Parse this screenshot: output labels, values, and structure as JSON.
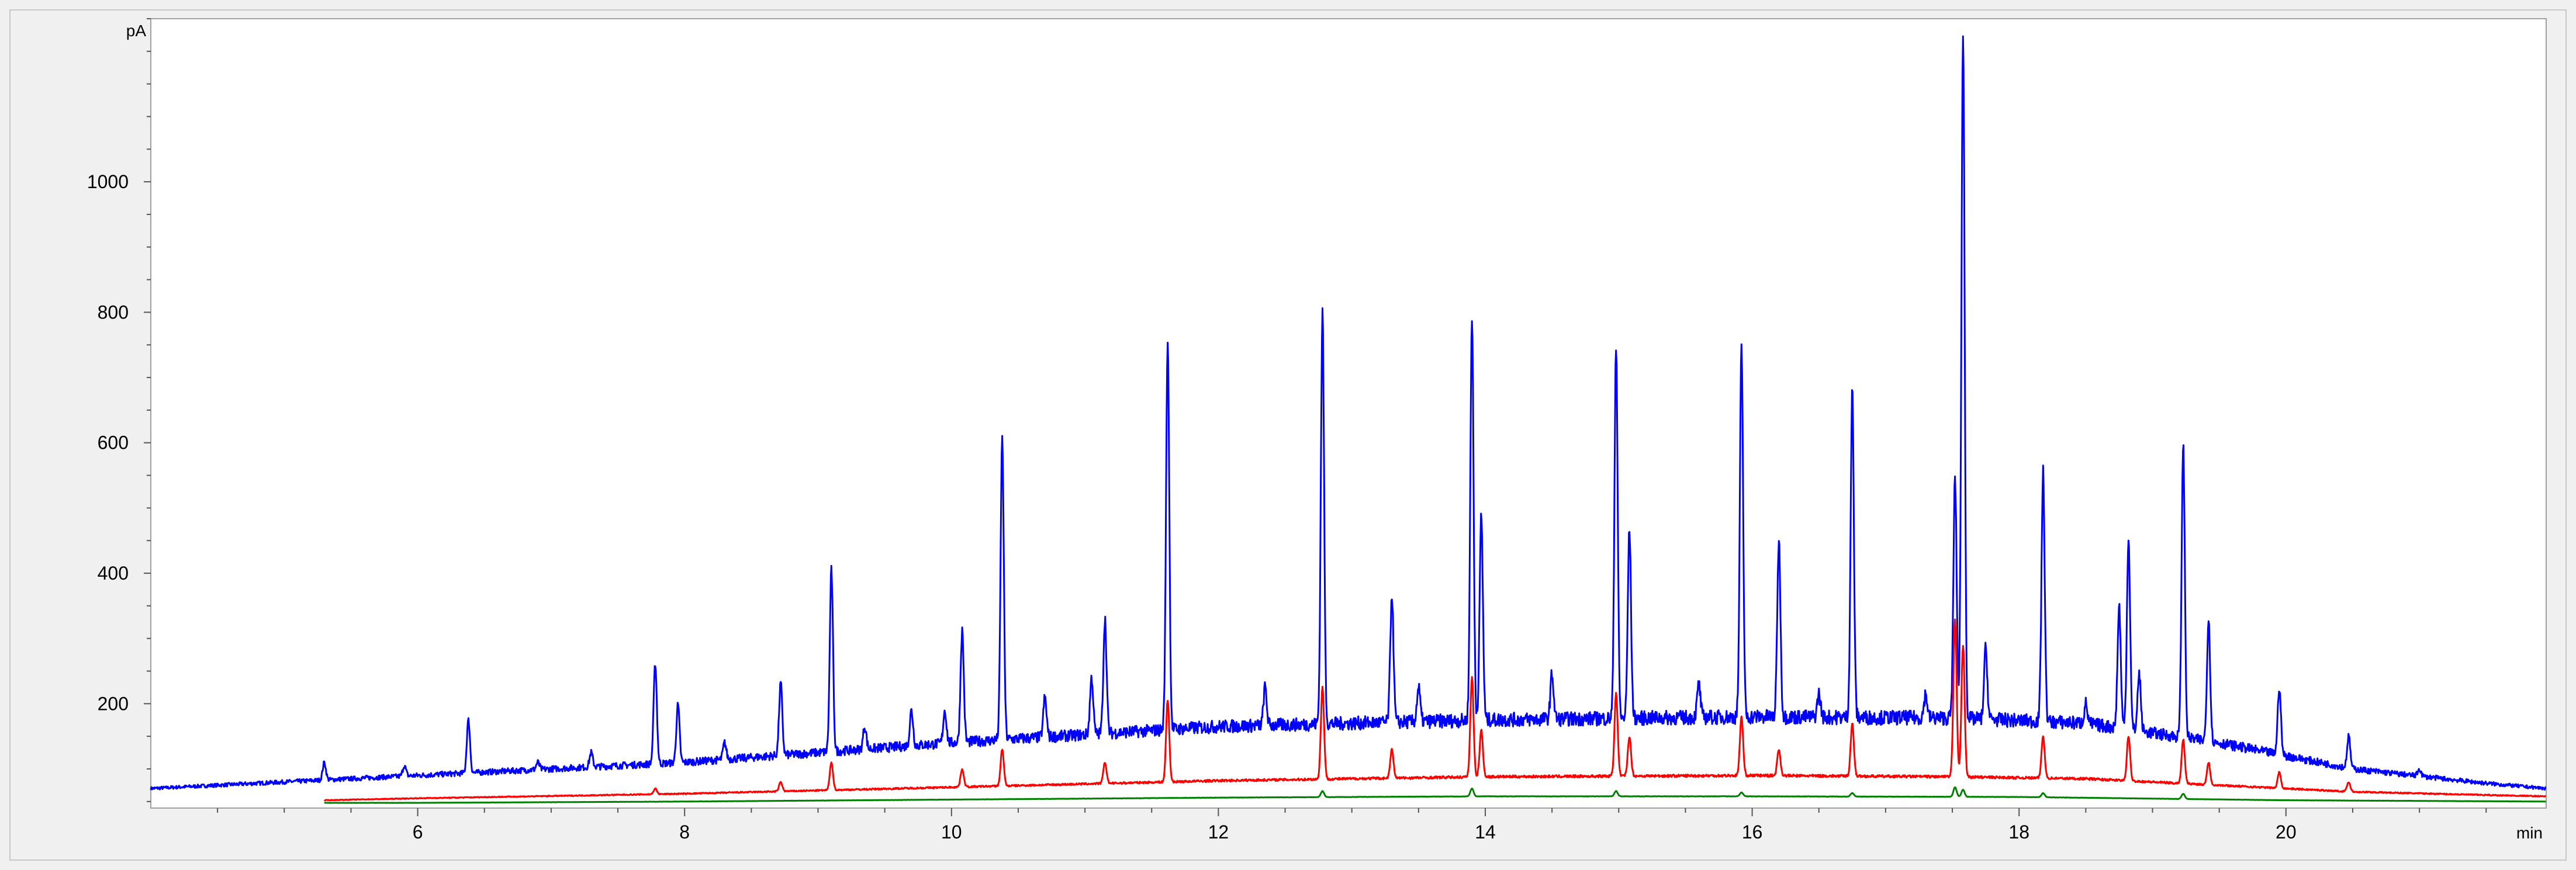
{
  "chart_data": {
    "type": "line",
    "title": "",
    "xlabel": "",
    "ylabel": "",
    "x_unit": "min",
    "y_unit": "pA",
    "xlim": [
      4.0,
      21.95
    ],
    "ylim": [
      40,
      1250
    ],
    "x_ticks": [
      6,
      8,
      10,
      12,
      14,
      16,
      18,
      20
    ],
    "y_ticks": [
      200,
      400,
      600,
      800,
      1000
    ],
    "grid": false,
    "legend": "none",
    "plot_background": "#ffffff",
    "series": [
      {
        "color": "#0000ff",
        "baseline": [
          [
            4.0,
            70
          ],
          [
            6.0,
            90
          ],
          [
            8.0,
            110
          ],
          [
            10.0,
            140
          ],
          [
            12.0,
            165
          ],
          [
            14.0,
            175
          ],
          [
            16.0,
            180
          ],
          [
            17.5,
            178
          ],
          [
            18.5,
            170
          ],
          [
            19.5,
            140
          ],
          [
            20.5,
            100
          ],
          [
            21.5,
            78
          ],
          [
            21.95,
            70
          ]
        ],
        "peaks": [
          [
            5.3,
            110
          ],
          [
            5.9,
            105
          ],
          [
            6.38,
            175
          ],
          [
            6.9,
            110
          ],
          [
            7.3,
            125
          ],
          [
            7.78,
            262
          ],
          [
            7.95,
            198
          ],
          [
            8.3,
            140
          ],
          [
            8.72,
            232
          ],
          [
            9.1,
            405
          ],
          [
            9.35,
            165
          ],
          [
            9.7,
            190
          ],
          [
            9.95,
            190
          ],
          [
            10.08,
            312
          ],
          [
            10.38,
            605
          ],
          [
            10.7,
            210
          ],
          [
            11.05,
            240
          ],
          [
            11.15,
            330
          ],
          [
            11.62,
            755
          ],
          [
            12.35,
            225
          ],
          [
            12.78,
            800
          ],
          [
            13.3,
            368
          ],
          [
            13.5,
            225
          ],
          [
            13.9,
            795
          ],
          [
            13.97,
            490
          ],
          [
            14.5,
            245
          ],
          [
            14.98,
            750
          ],
          [
            15.08,
            468
          ],
          [
            15.6,
            230
          ],
          [
            15.92,
            745
          ],
          [
            16.2,
            450
          ],
          [
            16.5,
            215
          ],
          [
            16.75,
            680
          ],
          [
            17.3,
            215
          ],
          [
            17.52,
            545
          ],
          [
            17.58,
            1230
          ],
          [
            17.75,
            285
          ],
          [
            18.18,
            555
          ],
          [
            18.5,
            200
          ],
          [
            18.75,
            350
          ],
          [
            18.82,
            455
          ],
          [
            18.9,
            245
          ],
          [
            19.23,
            595
          ],
          [
            19.42,
            330
          ],
          [
            19.95,
            225
          ],
          [
            20.47,
            150
          ],
          [
            21.0,
            100
          ]
        ]
      },
      {
        "color": "#ff0000",
        "baseline": [
          [
            5.3,
            52
          ],
          [
            6.0,
            55
          ],
          [
            8.0,
            62
          ],
          [
            10.0,
            72
          ],
          [
            12.0,
            82
          ],
          [
            14.0,
            88
          ],
          [
            16.0,
            90
          ],
          [
            17.5,
            88
          ],
          [
            18.5,
            85
          ],
          [
            19.5,
            75
          ],
          [
            20.5,
            65
          ],
          [
            21.5,
            60
          ],
          [
            21.95,
            58
          ]
        ],
        "peaks": [
          [
            7.78,
            70
          ],
          [
            8.72,
            80
          ],
          [
            9.1,
            110
          ],
          [
            10.08,
            100
          ],
          [
            10.38,
            130
          ],
          [
            11.15,
            110
          ],
          [
            11.62,
            205
          ],
          [
            12.78,
            225
          ],
          [
            13.3,
            130
          ],
          [
            13.9,
            240
          ],
          [
            13.97,
            160
          ],
          [
            14.98,
            215
          ],
          [
            15.08,
            150
          ],
          [
            15.92,
            180
          ],
          [
            16.2,
            130
          ],
          [
            16.75,
            170
          ],
          [
            17.52,
            330
          ],
          [
            17.58,
            290
          ],
          [
            18.18,
            150
          ],
          [
            18.82,
            150
          ],
          [
            19.23,
            145
          ],
          [
            19.42,
            110
          ],
          [
            19.95,
            95
          ],
          [
            20.47,
            80
          ]
        ]
      },
      {
        "color": "#008000",
        "baseline": [
          [
            5.3,
            48
          ],
          [
            6.0,
            48
          ],
          [
            8.0,
            50
          ],
          [
            10.0,
            53
          ],
          [
            12.0,
            56
          ],
          [
            14.0,
            58
          ],
          [
            16.0,
            58
          ],
          [
            18.0,
            57
          ],
          [
            20.0,
            52
          ],
          [
            21.95,
            50
          ]
        ],
        "peaks": [
          [
            12.78,
            66
          ],
          [
            13.9,
            70
          ],
          [
            14.98,
            66
          ],
          [
            15.92,
            64
          ],
          [
            16.75,
            63
          ],
          [
            17.52,
            72
          ],
          [
            17.58,
            68
          ],
          [
            18.18,
            63
          ],
          [
            19.23,
            62
          ]
        ]
      }
    ]
  }
}
